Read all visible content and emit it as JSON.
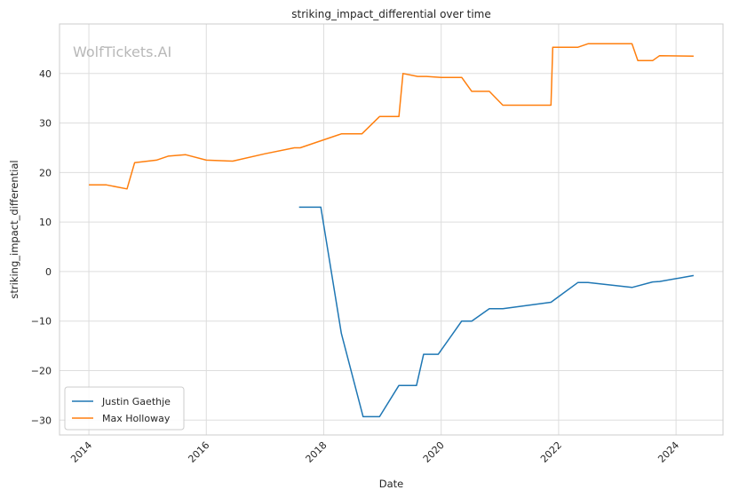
{
  "chart_data": {
    "type": "line",
    "title": "striking_impact_differential over time",
    "xlabel": "Date",
    "ylabel": "striking_impact_differential",
    "watermark": "WolfTickets.AI",
    "xlim": [
      2013.5,
      2024.8
    ],
    "ylim": [
      -33,
      50
    ],
    "x_ticks": [
      2014,
      2016,
      2018,
      2020,
      2022,
      2024
    ],
    "y_ticks": [
      -30,
      -20,
      -10,
      0,
      10,
      20,
      30,
      40
    ],
    "grid": true,
    "legend_position": "lower-left",
    "series": [
      {
        "name": "Justin Gaethje",
        "color": "#1f77b4",
        "x": [
          2017.58,
          2017.95,
          2018.3,
          2018.67,
          2018.95,
          2019.28,
          2019.58,
          2019.7,
          2019.95,
          2020.35,
          2020.52,
          2020.82,
          2021.05,
          2021.87,
          2022.33,
          2022.5,
          2023.25,
          2023.6,
          2023.72,
          2024.3
        ],
        "y": [
          13.0,
          13.0,
          -12.5,
          -29.3,
          -29.3,
          -23.0,
          -23.0,
          -16.7,
          -16.7,
          -10.0,
          -10.0,
          -7.5,
          -7.5,
          -6.2,
          -2.2,
          -2.2,
          -3.2,
          -2.1,
          -2.0,
          -0.8
        ]
      },
      {
        "name": "Max Holloway",
        "color": "#ff7f0e",
        "x": [
          2014.0,
          2014.3,
          2014.65,
          2014.78,
          2015.15,
          2015.35,
          2015.65,
          2016.0,
          2016.45,
          2017.0,
          2017.5,
          2017.6,
          2018.3,
          2018.65,
          2018.95,
          2019.28,
          2019.35,
          2019.6,
          2019.75,
          2020.0,
          2020.35,
          2020.52,
          2020.82,
          2021.05,
          2021.87,
          2021.9,
          2022.33,
          2022.5,
          2023.25,
          2023.35,
          2023.6,
          2023.72,
          2024.3
        ],
        "y": [
          17.5,
          17.5,
          16.7,
          22.0,
          22.5,
          23.3,
          23.6,
          22.5,
          22.3,
          23.8,
          25.0,
          25.0,
          27.8,
          27.8,
          31.3,
          31.3,
          40.0,
          39.4,
          39.4,
          39.2,
          39.2,
          36.4,
          36.4,
          33.6,
          33.6,
          45.3,
          45.3,
          46.0,
          46.0,
          42.6,
          42.6,
          43.6,
          43.5
        ]
      }
    ]
  }
}
